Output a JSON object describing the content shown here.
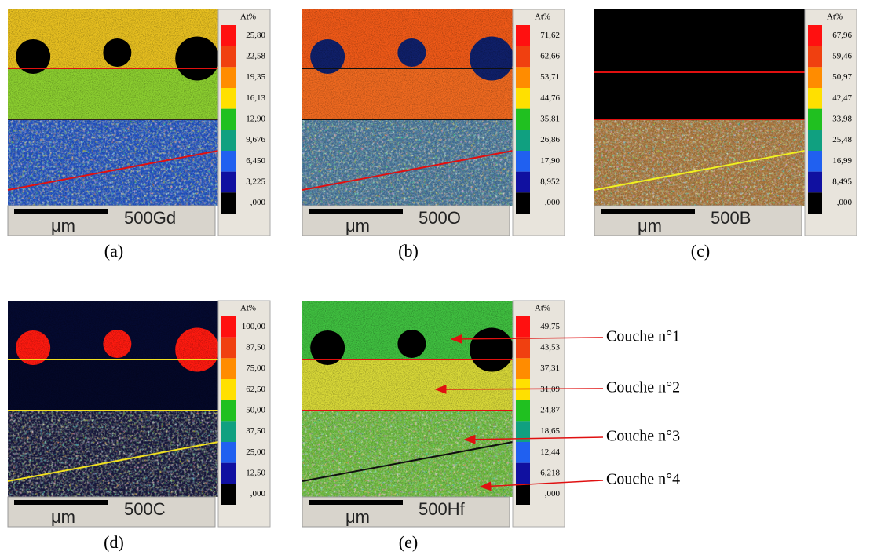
{
  "panels": [
    {
      "label": "(a)",
      "unit_header": "At%",
      "scale_unit": "μm",
      "scale": "500Gd",
      "colorbar": [
        "25,80",
        "22,58",
        "19,35",
        "16,13",
        "12,90",
        "9,676",
        "6,450",
        "3,225",
        ",000"
      ]
    },
    {
      "label": "(b)",
      "unit_header": "At%",
      "scale_unit": "μm",
      "scale": "500O",
      "colorbar": [
        "71,62",
        "62,66",
        "53,71",
        "44,76",
        "35,81",
        "26,86",
        "17,90",
        "8,952",
        ",000"
      ]
    },
    {
      "label": "(c)",
      "unit_header": "At%",
      "scale_unit": "μm",
      "scale": "500B",
      "colorbar": [
        "67,96",
        "59,46",
        "50,97",
        "42,47",
        "33,98",
        "25,48",
        "16,99",
        "8,495",
        ",000"
      ]
    },
    {
      "label": "(d)",
      "unit_header": "At%",
      "scale_unit": "μm",
      "scale": "500C",
      "colorbar": [
        "100,00",
        "87,50",
        "75,00",
        "62,50",
        "50,00",
        "37,50",
        "25,00",
        "12,50",
        ",000"
      ]
    },
    {
      "label": "(e)",
      "unit_header": "At%",
      "scale_unit": "μm",
      "scale": "500Hf",
      "colorbar": [
        "49,75",
        "43,53",
        "37,31",
        "31,09",
        "24,87",
        "18,65",
        "12,44",
        "6,218",
        ",000"
      ]
    }
  ],
  "annotations": [
    "Couche n°1",
    "Couche n°2",
    "Couche n°3",
    "Couche n°4"
  ]
}
